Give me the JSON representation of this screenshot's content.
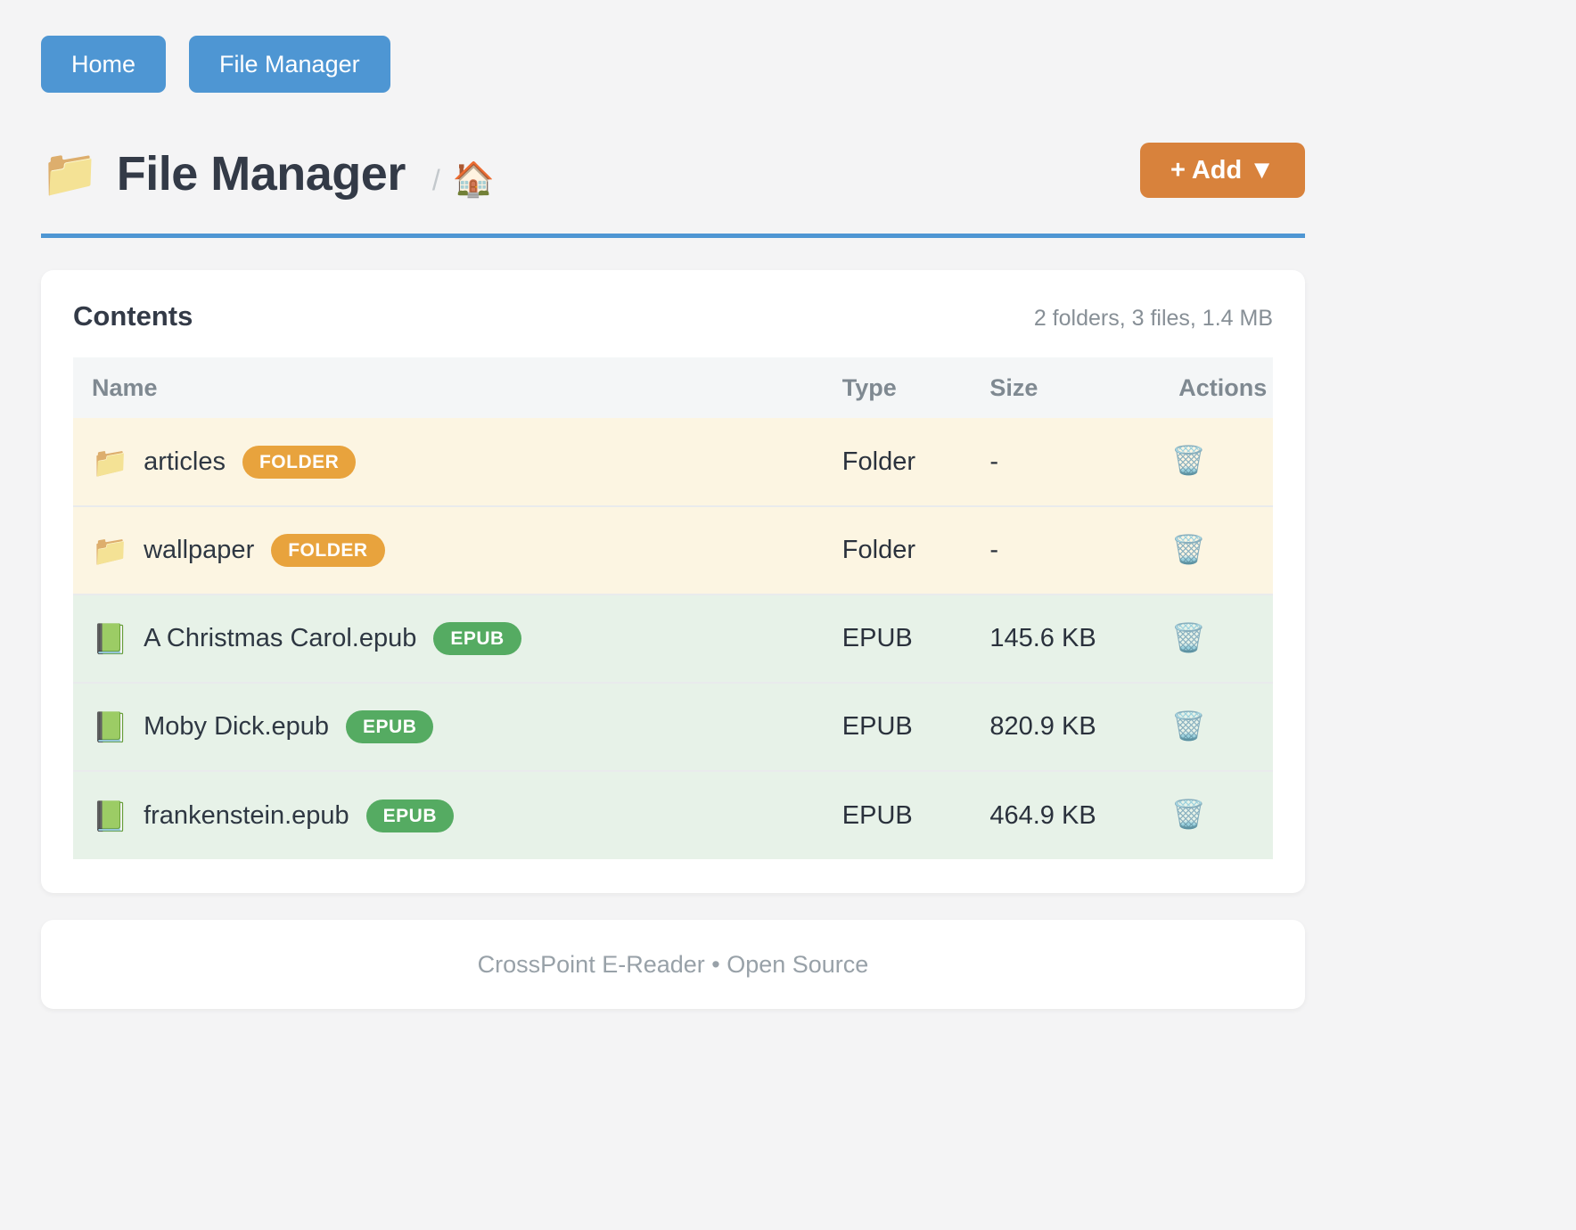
{
  "nav": {
    "home_label": "Home",
    "file_manager_label": "File Manager"
  },
  "header": {
    "title_icon": "📁",
    "title": "File Manager",
    "breadcrumb_separator": "/",
    "breadcrumb_home_icon": "🏠",
    "add_button_label": "+ Add ▼"
  },
  "panel": {
    "title": "Contents",
    "summary": "2 folders, 3 files, 1.4 MB"
  },
  "table": {
    "headers": {
      "name": "Name",
      "type": "Type",
      "size": "Size",
      "actions": "Actions"
    },
    "delete_icon": "🗑️",
    "rows": [
      {
        "icon": "📁",
        "name": "articles",
        "badge": "FOLDER",
        "type": "Folder",
        "size": "-"
      },
      {
        "icon": "📁",
        "name": "wallpaper",
        "badge": "FOLDER",
        "type": "Folder",
        "size": "-"
      },
      {
        "icon": "📗",
        "name": "A Christmas Carol.epub",
        "badge": "EPUB",
        "type": "EPUB",
        "size": "145.6 KB"
      },
      {
        "icon": "📗",
        "name": "Moby Dick.epub",
        "badge": "EPUB",
        "type": "EPUB",
        "size": "820.9 KB"
      },
      {
        "icon": "📗",
        "name": "frankenstein.epub",
        "badge": "EPUB",
        "type": "EPUB",
        "size": "464.9 KB"
      }
    ]
  },
  "footer": {
    "text": "CrossPoint E-Reader • Open Source"
  },
  "colors": {
    "accent_blue": "#4e96d3",
    "accent_orange": "#d8823c",
    "badge_orange": "#e8a33d",
    "badge_green": "#55ab62",
    "folder_row_bg": "#fcf5e2",
    "epub_row_bg": "#e7f2e8"
  }
}
